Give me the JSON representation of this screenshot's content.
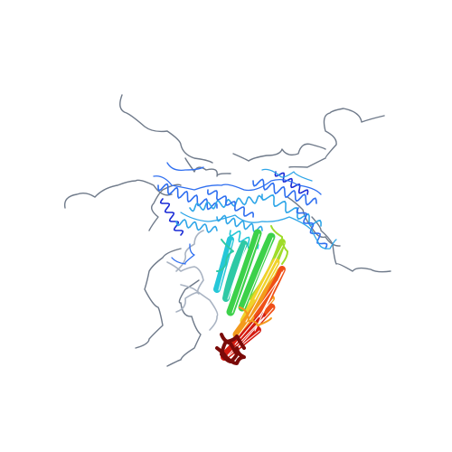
{
  "scene": {
    "background": "#ffffff",
    "palette": {
      "n_terminus": "#1a2bd6",
      "blue": "#2f6ff0",
      "light_blue": "#2fa6e8",
      "cyan": "#25c7d8",
      "teal": "#2fc9a5",
      "green": "#3cd14a",
      "yellow_green": "#9fdc2a",
      "yellow": "#f0d22a",
      "orange": "#f39a1c",
      "red_orange": "#ef4f18",
      "red": "#d51b10",
      "c_terminus": "#7a0a08",
      "disordered_loop": "#6f7a8a",
      "pale_loop": "#a9b3c2"
    },
    "shading": "rainbow N-to-C"
  }
}
